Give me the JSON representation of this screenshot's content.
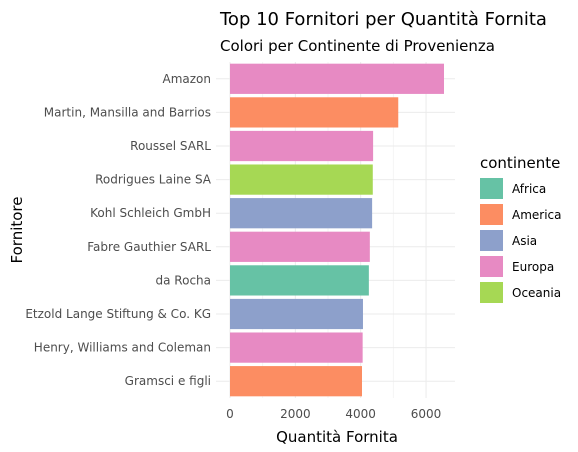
{
  "chart_data": {
    "type": "bar",
    "orientation": "horizontal",
    "title": "Top 10 Fornitori per Quantità Fornita",
    "subtitle": "Colori per Continente di Provenienza",
    "xlabel": "Quantità Fornita",
    "ylabel": "Fornitore",
    "xlim": [
      0,
      6800
    ],
    "xticks": [
      0,
      2000,
      4000,
      6000
    ],
    "grid": true,
    "legend": {
      "title": "continente",
      "position": "right",
      "entries": [
        {
          "name": "Africa",
          "color": "#66c2a5"
        },
        {
          "name": "America",
          "color": "#fc8d62"
        },
        {
          "name": "Asia",
          "color": "#8da0cb"
        },
        {
          "name": "Europa",
          "color": "#e78ac3"
        },
        {
          "name": "Oceania",
          "color": "#a6d854"
        }
      ]
    },
    "bars": [
      {
        "label": "Amazon",
        "value": 6550,
        "continent": "Europa"
      },
      {
        "label": "Martin, Mansilla and Barrios",
        "value": 5150,
        "continent": "America"
      },
      {
        "label": "Roussel SARL",
        "value": 4380,
        "continent": "Europa"
      },
      {
        "label": "Rodrigues Laine SA",
        "value": 4370,
        "continent": "Oceania"
      },
      {
        "label": "Kohl Schleich GmbH",
        "value": 4350,
        "continent": "Asia"
      },
      {
        "label": "Fabre Gauthier SARL",
        "value": 4280,
        "continent": "Europa"
      },
      {
        "label": "da Rocha",
        "value": 4250,
        "continent": "Africa"
      },
      {
        "label": "Etzold Lange Stiftung & Co. KG",
        "value": 4070,
        "continent": "Asia"
      },
      {
        "label": "Henry, Williams and Coleman",
        "value": 4060,
        "continent": "Europa"
      },
      {
        "label": "Gramsci e figli",
        "value": 4040,
        "continent": "America"
      }
    ]
  }
}
